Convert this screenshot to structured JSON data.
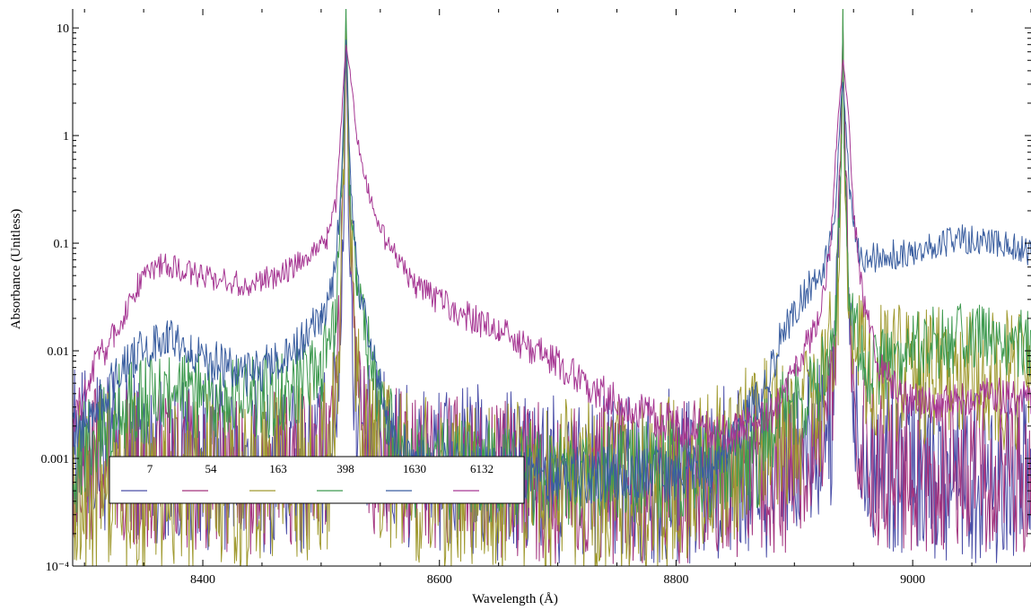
{
  "chart_data": {
    "type": "line",
    "title": "",
    "xlabel": "Wavelength (Å)",
    "ylabel": "Absorbance (Unitless)",
    "xlim": [
      8290,
      9100
    ],
    "ylim": [
      0.0001,
      15
    ],
    "yscale": "log",
    "grid": false,
    "legend_position": "lower-left",
    "x_ticks": [
      {
        "value": 8400,
        "label": "8400"
      },
      {
        "value": 8600,
        "label": "8600"
      },
      {
        "value": 8800,
        "label": "8800"
      },
      {
        "value": 9000,
        "label": "9000"
      }
    ],
    "y_ticks": [
      {
        "value": 0.0001,
        "label": "10⁻⁴"
      },
      {
        "value": 0.001,
        "label": "0.001"
      },
      {
        "value": 0.01,
        "label": "0.01"
      },
      {
        "value": 0.1,
        "label": "0.1"
      },
      {
        "value": 1,
        "label": "1"
      },
      {
        "value": 10,
        "label": "10"
      }
    ],
    "series": [
      {
        "name": "7",
        "color": "#4b4fa8",
        "noise": 0.55,
        "points": [
          [
            8290,
            0.0012
          ],
          [
            8340,
            0.0011
          ],
          [
            8400,
            0.0009
          ],
          [
            8480,
            0.0008
          ],
          [
            8505,
            0.0012
          ],
          [
            8515,
            0.006
          ],
          [
            8519.5,
            0.3
          ],
          [
            8521,
            8
          ],
          [
            8523,
            0.3
          ],
          [
            8528,
            0.004
          ],
          [
            8540,
            0.0012
          ],
          [
            8600,
            0.0008
          ],
          [
            8700,
            0.0006
          ],
          [
            8800,
            0.0007
          ],
          [
            8900,
            0.0008
          ],
          [
            8932,
            0.002
          ],
          [
            8939,
            0.4
          ],
          [
            8941,
            9
          ],
          [
            8943,
            0.4
          ],
          [
            8950,
            0.002
          ],
          [
            8970,
            0.0009
          ],
          [
            9050,
            0.0007
          ],
          [
            9100,
            0.0007
          ]
        ]
      },
      {
        "name": "54",
        "color": "#a3347e",
        "noise": 0.5,
        "points": [
          [
            8290,
            0.0009
          ],
          [
            8360,
            0.0008
          ],
          [
            8440,
            0.0007
          ],
          [
            8505,
            0.0009
          ],
          [
            8514,
            0.005
          ],
          [
            8519.5,
            0.5
          ],
          [
            8521,
            11
          ],
          [
            8523,
            0.5
          ],
          [
            8530,
            0.003
          ],
          [
            8545,
            0.001
          ],
          [
            8600,
            0.0007
          ],
          [
            8700,
            0.0006
          ],
          [
            8800,
            0.0006
          ],
          [
            8900,
            0.0007
          ],
          [
            8933,
            0.003
          ],
          [
            8939,
            0.6
          ],
          [
            8941,
            11
          ],
          [
            8943,
            0.6
          ],
          [
            8950,
            0.003
          ],
          [
            8970,
            0.0008
          ],
          [
            9100,
            0.0007
          ]
        ]
      },
      {
        "name": "163",
        "color": "#a09a30",
        "noise": 0.55,
        "points": [
          [
            8290,
            0.0006
          ],
          [
            8360,
            0.0006
          ],
          [
            8440,
            0.0006
          ],
          [
            8505,
            0.0008
          ],
          [
            8514,
            0.004
          ],
          [
            8519.5,
            0.6
          ],
          [
            8521,
            13
          ],
          [
            8523,
            0.6
          ],
          [
            8530,
            0.004
          ],
          [
            8545,
            0.001
          ],
          [
            8600,
            0.0006
          ],
          [
            8700,
            0.0005
          ],
          [
            8800,
            0.0006
          ],
          [
            8900,
            0.002
          ],
          [
            8925,
            0.004
          ],
          [
            8937,
            0.03
          ],
          [
            8940,
            1
          ],
          [
            8941,
            16
          ],
          [
            8942,
            1
          ],
          [
            8946,
            0.03
          ],
          [
            8960,
            0.006
          ],
          [
            9000,
            0.006
          ],
          [
            9100,
            0.005
          ]
        ]
      },
      {
        "name": "398",
        "color": "#3f9a50",
        "noise": 0.32,
        "points": [
          [
            8290,
            0.0008
          ],
          [
            8305,
            0.0015
          ],
          [
            8330,
            0.003
          ],
          [
            8370,
            0.004
          ],
          [
            8420,
            0.0035
          ],
          [
            8470,
            0.004
          ],
          [
            8500,
            0.006
          ],
          [
            8512,
            0.02
          ],
          [
            8518,
            0.4
          ],
          [
            8521,
            16
          ],
          [
            8524,
            0.4
          ],
          [
            8530,
            0.04
          ],
          [
            8540,
            0.01
          ],
          [
            8550,
            0.003
          ],
          [
            8570,
            0.0008
          ],
          [
            8700,
            0.0007
          ],
          [
            8820,
            0.0008
          ],
          [
            8870,
            0.001
          ],
          [
            8890,
            0.0025
          ],
          [
            8920,
            0.005
          ],
          [
            8935,
            0.02
          ],
          [
            8940,
            1
          ],
          [
            8941,
            16
          ],
          [
            8942,
            1
          ],
          [
            8946,
            0.03
          ],
          [
            8960,
            0.006
          ],
          [
            8990,
            0.009
          ],
          [
            9020,
            0.012
          ],
          [
            9060,
            0.014
          ],
          [
            9100,
            0.012
          ]
        ]
      },
      {
        "name": "1630",
        "color": "#3a5ea0",
        "noise": 0.18,
        "points": [
          [
            8290,
            0.0015
          ],
          [
            8310,
            0.003
          ],
          [
            8335,
            0.008
          ],
          [
            8360,
            0.012
          ],
          [
            8370,
            0.013
          ],
          [
            8390,
            0.01
          ],
          [
            8420,
            0.007
          ],
          [
            8440,
            0.006
          ],
          [
            8470,
            0.0085
          ],
          [
            8500,
            0.02
          ],
          [
            8510,
            0.04
          ],
          [
            8517,
            0.3
          ],
          [
            8521,
            8
          ],
          [
            8525,
            0.3
          ],
          [
            8532,
            0.04
          ],
          [
            8545,
            0.009
          ],
          [
            8555,
            0.002
          ],
          [
            8580,
            0.0008
          ],
          [
            8700,
            0.0007
          ],
          [
            8830,
            0.0007
          ],
          [
            8860,
            0.0025
          ],
          [
            8875,
            0.004
          ],
          [
            8885,
            0.01
          ],
          [
            8905,
            0.03
          ],
          [
            8925,
            0.06
          ],
          [
            8935,
            0.2
          ],
          [
            8939,
            2
          ],
          [
            8941,
            3.3
          ],
          [
            8943,
            1.5
          ],
          [
            8947,
            0.3
          ],
          [
            8953,
            0.09
          ],
          [
            8960,
            0.07
          ],
          [
            9000,
            0.085
          ],
          [
            9040,
            0.11
          ],
          [
            9060,
            0.105
          ],
          [
            9085,
            0.09
          ],
          [
            9100,
            0.08
          ]
        ]
      },
      {
        "name": "6132",
        "color": "#a63793",
        "noise": 0.14,
        "points": [
          [
            8290,
            0.002
          ],
          [
            8305,
            0.006
          ],
          [
            8325,
            0.015
          ],
          [
            8345,
            0.04
          ],
          [
            8362,
            0.062
          ],
          [
            8370,
            0.063
          ],
          [
            8385,
            0.055
          ],
          [
            8400,
            0.05
          ],
          [
            8430,
            0.042
          ],
          [
            8450,
            0.045
          ],
          [
            8470,
            0.055
          ],
          [
            8490,
            0.075
          ],
          [
            8505,
            0.11
          ],
          [
            8513,
            0.25
          ],
          [
            8518,
            2
          ],
          [
            8521,
            7
          ],
          [
            8525,
            3.5
          ],
          [
            8530,
            1
          ],
          [
            8540,
            0.3
          ],
          [
            8555,
            0.1
          ],
          [
            8580,
            0.04
          ],
          [
            8610,
            0.025
          ],
          [
            8650,
            0.015
          ],
          [
            8700,
            0.008
          ],
          [
            8720,
            0.005
          ],
          [
            8760,
            0.003
          ],
          [
            8800,
            0.002
          ],
          [
            8850,
            0.0017
          ],
          [
            8880,
            0.0025
          ],
          [
            8900,
            0.006
          ],
          [
            8920,
            0.02
          ],
          [
            8930,
            0.08
          ],
          [
            8936,
            1
          ],
          [
            8941,
            5
          ],
          [
            8946,
            1.5
          ],
          [
            8950,
            0.2
          ],
          [
            8958,
            0.03
          ],
          [
            8970,
            0.008
          ],
          [
            8990,
            0.004
          ],
          [
            9020,
            0.003
          ],
          [
            9060,
            0.004
          ],
          [
            9100,
            0.0035
          ]
        ]
      }
    ]
  }
}
